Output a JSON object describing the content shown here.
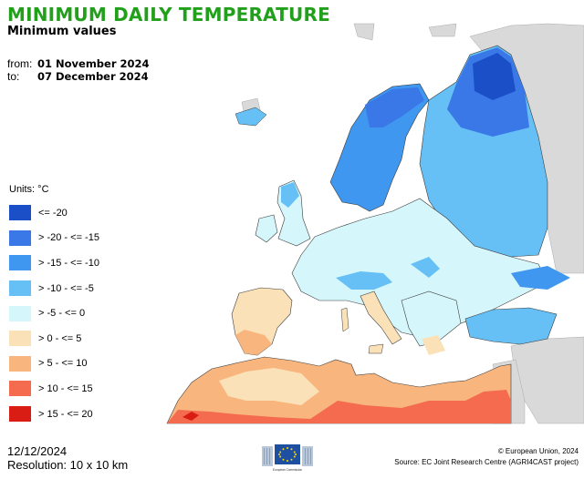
{
  "header": {
    "title": "MINIMUM DAILY TEMPERATURE",
    "subtitle": "Minimum values"
  },
  "period": {
    "from_label": "from:",
    "from_value": "01 November 2024",
    "to_label": "to:",
    "to_value": "07 December 2024"
  },
  "legend": {
    "units": "Units: °C",
    "items": [
      {
        "label": "<= -20",
        "color": "#1a4fc8"
      },
      {
        "label": "> -20 - <= -15",
        "color": "#3a78e8"
      },
      {
        "label": "> -15 - <= -10",
        "color": "#3f97ef"
      },
      {
        "label": "> -10 - <= -5",
        "color": "#66c0f5"
      },
      {
        "label": "> -5 - <= 0",
        "color": "#d5f7fc"
      },
      {
        "label": "> 0 - <= 5",
        "color": "#fae1b7"
      },
      {
        "label": "> 5 - <= 10",
        "color": "#f8b67e"
      },
      {
        "label": "> 10 - <= 15",
        "color": "#f56b4f"
      },
      {
        "label": "> 15 - <= 20",
        "color": "#d91c14"
      }
    ]
  },
  "footer": {
    "date": "12/12/2024",
    "resolution": "Resolution: 10 x 10 km",
    "copyright": "© European Union, 2024",
    "source": "Source: EC Joint Research Centre (AGRI4CAST project)",
    "logo_text": "European Commission"
  },
  "map": {
    "sea_color": "#ffffff",
    "outside_land_color": "#d9d9d9",
    "border_color": "#3c3c3c"
  }
}
